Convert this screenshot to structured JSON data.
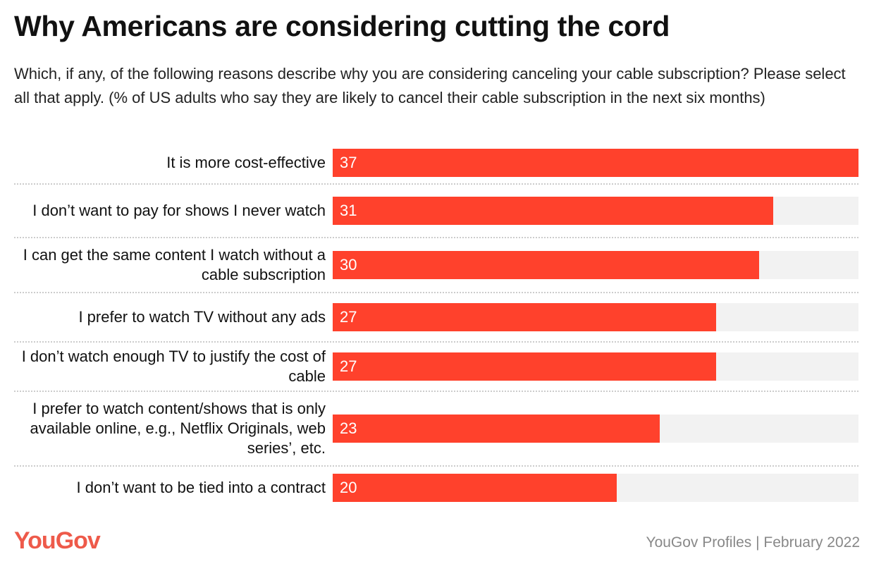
{
  "title": "Why Americans are considering cutting the cord",
  "subtitle": "Which, if any, of the following reasons describe why you are considering canceling your cable subscription? Please select all that apply. (% of US adults who say they are likely to cancel their cable subscription in the next six months)",
  "logo": "YouGov",
  "source": "YouGov Profiles | February 2022",
  "chart_data": {
    "type": "bar",
    "orientation": "horizontal",
    "title": "Why Americans are considering cutting the cord",
    "categories": [
      "It is more cost-effective",
      "I don’t want to pay for shows I never watch",
      "I can get the same content I watch without a cable subscription",
      "I prefer to watch TV without any ads",
      "I don’t watch enough TV to justify the cost of cable",
      "I prefer to watch content/shows that is only available online, e.g., Netflix Originals, web series’, etc.",
      "I don’t want to be tied into a contract"
    ],
    "values": [
      37,
      31,
      30,
      27,
      27,
      23,
      20
    ],
    "xlim": [
      0,
      37
    ],
    "bar_color": "#ff412c",
    "track_color": "#f2f2f2",
    "grid": false
  }
}
